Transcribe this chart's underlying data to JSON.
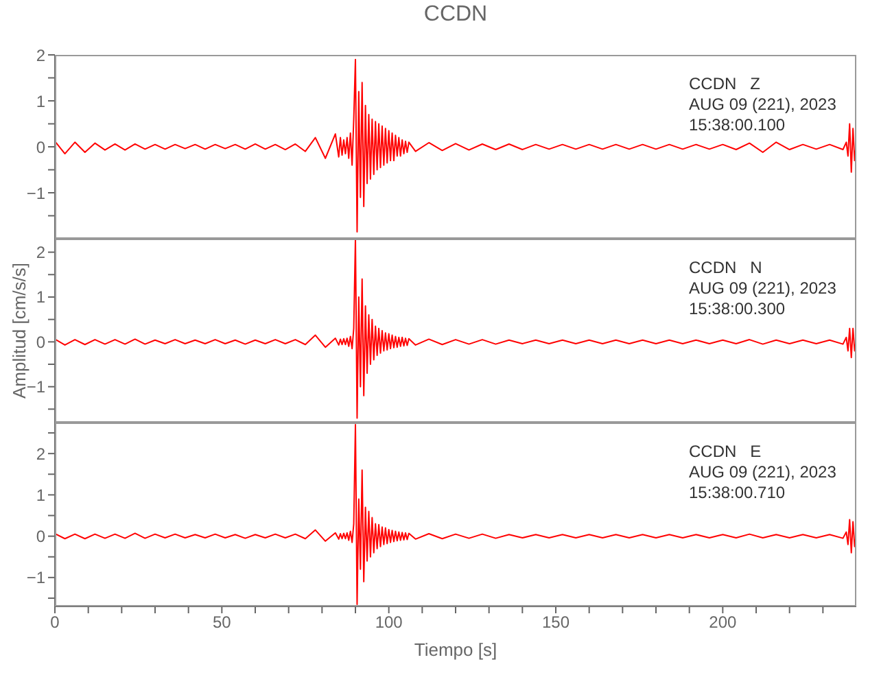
{
  "chart_data": [
    {
      "type": "line",
      "title": "CCDN",
      "annotations": [
        "CCDN   Z",
        "AUG 09 (221), 2023",
        "15:38:00.100"
      ],
      "tick_labels": "y",
      "xlim": [
        0,
        240
      ],
      "ylim": [
        -2,
        2
      ],
      "xticks": [
        0,
        {
          "value": 10,
          "label": null
        },
        {
          "value": 20,
          "label": null
        },
        {
          "value": 30,
          "label": null
        },
        {
          "value": 40,
          "label": null
        },
        50,
        {
          "value": 60,
          "label": null
        },
        {
          "value": 70,
          "label": null
        },
        {
          "value": 80,
          "label": null
        },
        {
          "value": 90,
          "label": null
        },
        100,
        {
          "value": 110,
          "label": null
        },
        {
          "value": 120,
          "label": null
        },
        {
          "value": 130,
          "label": null
        },
        {
          "value": 140,
          "label": null
        },
        150,
        {
          "value": 160,
          "label": null
        },
        {
          "value": 170,
          "label": null
        },
        {
          "value": 180,
          "label": null
        },
        {
          "value": 190,
          "label": null
        },
        200,
        {
          "value": 210,
          "label": null
        },
        {
          "value": 220,
          "label": null
        },
        {
          "value": 230,
          "label": null
        }
      ],
      "yticks": [
        {
          "value": -1.5,
          "label": null
        },
        -1,
        {
          "value": -0.5,
          "label": null
        },
        0,
        {
          "value": 0.5,
          "label": null
        },
        1,
        {
          "value": 1.5,
          "label": null
        },
        2
      ],
      "x": [
        0,
        3,
        6,
        9,
        12,
        15,
        18,
        21,
        24,
        27,
        30,
        33,
        36,
        39,
        42,
        45,
        48,
        51,
        54,
        57,
        60,
        63,
        66,
        69,
        72,
        75,
        78,
        81,
        84,
        85,
        85.5,
        86,
        86.5,
        87,
        87.5,
        88,
        88.5,
        89,
        89.5,
        90,
        90.5,
        91,
        91.5,
        92,
        92.5,
        93,
        93.5,
        94,
        94.5,
        95,
        95.5,
        96,
        96.5,
        97,
        97.5,
        98,
        98.5,
        99,
        99.5,
        100,
        100.5,
        101,
        101.5,
        102,
        102.5,
        103,
        103.5,
        104,
        104.5,
        105,
        105.5,
        106,
        108,
        112,
        116,
        120,
        124,
        128,
        132,
        136,
        140,
        144,
        148,
        152,
        156,
        160,
        164,
        168,
        172,
        176,
        180,
        184,
        188,
        192,
        196,
        200,
        204,
        208,
        212,
        216,
        220,
        224,
        228,
        232,
        236,
        237,
        237.5,
        238,
        238.5,
        239,
        239.5,
        240
      ],
      "series": [
        {
          "color": "#ff0000",
          "values": [
            0.12,
            -0.15,
            0.1,
            -0.12,
            0.08,
            -0.07,
            0.06,
            -0.07,
            0.06,
            -0.05,
            0.05,
            -0.05,
            0.05,
            -0.04,
            0.05,
            -0.05,
            0.05,
            -0.04,
            0.05,
            -0.05,
            0.06,
            -0.05,
            0.05,
            -0.06,
            0.06,
            -0.1,
            0.2,
            -0.25,
            0.28,
            -0.22,
            0.2,
            -0.18,
            0.15,
            -0.15,
            0.2,
            -0.25,
            0.3,
            -0.4,
            0.6,
            1.9,
            -1.85,
            1.2,
            -1.1,
            1.4,
            -1.3,
            0.9,
            -0.8,
            0.7,
            -0.7,
            0.6,
            -0.6,
            0.55,
            -0.5,
            0.5,
            -0.45,
            0.45,
            -0.4,
            0.4,
            -0.35,
            0.35,
            -0.3,
            0.3,
            -0.3,
            0.25,
            -0.2,
            0.2,
            -0.2,
            0.15,
            -0.15,
            0.12,
            -0.12,
            0.1,
            -0.1,
            0.09,
            -0.08,
            0.07,
            -0.07,
            0.06,
            -0.06,
            0.06,
            -0.06,
            0.05,
            -0.05,
            0.05,
            -0.05,
            0.05,
            -0.05,
            0.05,
            -0.05,
            0.05,
            -0.05,
            0.05,
            -0.05,
            0.05,
            -0.05,
            0.05,
            -0.06,
            0.08,
            -0.12,
            0.1,
            -0.06,
            0.05,
            -0.05,
            0.05,
            -0.06,
            0.1,
            -0.2,
            0.5,
            -0.55,
            0.4,
            -0.3,
            0.1
          ]
        }
      ]
    },
    {
      "type": "line",
      "ylabel": "Amplitud [cm/s/s]",
      "annotations": [
        "CCDN   N",
        "AUG 09 (221), 2023",
        "15:38:00.300"
      ],
      "tick_labels": "y",
      "xlim": [
        0,
        240
      ],
      "ylim": [
        -1.8,
        2.3
      ],
      "xticks": [
        0,
        {
          "value": 10,
          "label": null
        },
        {
          "value": 20,
          "label": null
        },
        {
          "value": 30,
          "label": null
        },
        {
          "value": 40,
          "label": null
        },
        50,
        {
          "value": 60,
          "label": null
        },
        {
          "value": 70,
          "label": null
        },
        {
          "value": 80,
          "label": null
        },
        {
          "value": 90,
          "label": null
        },
        100,
        {
          "value": 110,
          "label": null
        },
        {
          "value": 120,
          "label": null
        },
        {
          "value": 130,
          "label": null
        },
        {
          "value": 140,
          "label": null
        },
        150,
        {
          "value": 160,
          "label": null
        },
        {
          "value": 170,
          "label": null
        },
        {
          "value": 180,
          "label": null
        },
        {
          "value": 190,
          "label": null
        },
        200,
        {
          "value": 210,
          "label": null
        },
        {
          "value": 220,
          "label": null
        },
        {
          "value": 230,
          "label": null
        }
      ],
      "yticks": [
        {
          "value": -1.5,
          "label": null
        },
        -1,
        {
          "value": -0.5,
          "label": null
        },
        0,
        {
          "value": 0.5,
          "label": null
        },
        1,
        {
          "value": 1.5,
          "label": null
        },
        2
      ],
      "x": [
        0,
        3,
        6,
        9,
        12,
        15,
        18,
        21,
        24,
        27,
        30,
        33,
        36,
        39,
        42,
        45,
        48,
        51,
        54,
        57,
        60,
        63,
        66,
        69,
        72,
        75,
        78,
        81,
        84,
        85,
        85.5,
        86,
        86.5,
        87,
        87.5,
        88,
        88.5,
        89,
        89.5,
        90,
        90.5,
        91,
        91.5,
        92,
        92.5,
        93,
        93.5,
        94,
        94.5,
        95,
        95.5,
        96,
        96.5,
        97,
        97.5,
        98,
        98.5,
        99,
        99.5,
        100,
        100.5,
        101,
        101.5,
        102,
        102.5,
        103,
        103.5,
        104,
        104.5,
        105,
        105.5,
        106,
        108,
        112,
        116,
        120,
        124,
        128,
        132,
        136,
        140,
        144,
        148,
        152,
        156,
        160,
        164,
        168,
        172,
        176,
        180,
        184,
        188,
        192,
        196,
        200,
        204,
        208,
        212,
        216,
        220,
        224,
        228,
        232,
        236,
        237,
        237.5,
        238,
        238.5,
        239,
        239.5,
        240
      ],
      "series": [
        {
          "color": "#ff0000",
          "values": [
            0.06,
            -0.07,
            0.05,
            -0.06,
            0.05,
            -0.05,
            0.05,
            -0.05,
            0.06,
            -0.05,
            0.04,
            -0.04,
            0.05,
            -0.04,
            0.04,
            -0.04,
            0.05,
            -0.04,
            0.04,
            -0.05,
            0.04,
            -0.04,
            0.05,
            -0.04,
            0.05,
            -0.06,
            0.15,
            -0.12,
            0.08,
            -0.07,
            0.06,
            -0.06,
            0.07,
            -0.06,
            0.08,
            -0.1,
            0.12,
            -0.15,
            0.3,
            2.3,
            -1.7,
            1.0,
            -1.0,
            1.4,
            -1.2,
            0.8,
            -0.7,
            0.6,
            -0.5,
            0.5,
            -0.4,
            0.35,
            -0.3,
            0.3,
            -0.25,
            0.25,
            -0.2,
            0.2,
            -0.18,
            0.18,
            -0.15,
            0.15,
            -0.13,
            0.12,
            -0.12,
            0.1,
            -0.1,
            0.1,
            -0.09,
            0.08,
            -0.08,
            0.07,
            -0.07,
            0.06,
            -0.06,
            0.05,
            -0.05,
            0.05,
            -0.05,
            0.04,
            -0.04,
            0.04,
            -0.04,
            0.04,
            -0.04,
            0.04,
            -0.04,
            0.04,
            -0.04,
            0.04,
            -0.04,
            0.04,
            -0.04,
            0.04,
            -0.04,
            0.04,
            -0.04,
            0.05,
            -0.05,
            0.04,
            -0.04,
            0.04,
            -0.04,
            0.04,
            -0.05,
            0.1,
            -0.2,
            0.3,
            -0.35,
            0.3,
            -0.2,
            0.05
          ]
        }
      ]
    },
    {
      "type": "line",
      "xlabel": "Tiempo [s]",
      "annotations": [
        "CCDN   E",
        "AUG 09 (221), 2023",
        "15:38:00.710"
      ],
      "xlim": [
        0,
        240
      ],
      "ylim": [
        -1.7,
        2.75
      ],
      "xticks": [
        0,
        {
          "value": 10,
          "label": null
        },
        {
          "value": 20,
          "label": null
        },
        {
          "value": 30,
          "label": null
        },
        {
          "value": 40,
          "label": null
        },
        50,
        {
          "value": 60,
          "label": null
        },
        {
          "value": 70,
          "label": null
        },
        {
          "value": 80,
          "label": null
        },
        {
          "value": 90,
          "label": null
        },
        100,
        {
          "value": 110,
          "label": null
        },
        {
          "value": 120,
          "label": null
        },
        {
          "value": 130,
          "label": null
        },
        {
          "value": 140,
          "label": null
        },
        150,
        {
          "value": 160,
          "label": null
        },
        {
          "value": 170,
          "label": null
        },
        {
          "value": 180,
          "label": null
        },
        {
          "value": 190,
          "label": null
        },
        200,
        {
          "value": 210,
          "label": null
        },
        {
          "value": 220,
          "label": null
        },
        {
          "value": 230,
          "label": null
        }
      ],
      "yticks": [
        {
          "value": -1.5,
          "label": null
        },
        -1,
        {
          "value": -0.5,
          "label": null
        },
        0,
        {
          "value": 0.5,
          "label": null
        },
        1,
        {
          "value": 1.5,
          "label": null
        },
        2,
        {
          "value": 2.5,
          "label": null
        }
      ],
      "x": [
        0,
        3,
        6,
        9,
        12,
        15,
        18,
        21,
        24,
        27,
        30,
        33,
        36,
        39,
        42,
        45,
        48,
        51,
        54,
        57,
        60,
        63,
        66,
        69,
        72,
        75,
        78,
        81,
        84,
        85,
        85.5,
        86,
        86.5,
        87,
        87.5,
        88,
        88.5,
        89,
        89.5,
        90,
        90.5,
        91,
        91.5,
        92,
        92.5,
        93,
        93.5,
        94,
        94.5,
        95,
        95.5,
        96,
        96.5,
        97,
        97.5,
        98,
        98.5,
        99,
        99.5,
        100,
        100.5,
        101,
        101.5,
        102,
        102.5,
        103,
        103.5,
        104,
        104.5,
        105,
        105.5,
        106,
        108,
        112,
        116,
        120,
        124,
        128,
        132,
        136,
        140,
        144,
        148,
        152,
        156,
        160,
        164,
        168,
        172,
        176,
        180,
        184,
        188,
        192,
        196,
        200,
        204,
        208,
        212,
        216,
        220,
        224,
        228,
        232,
        236,
        237,
        237.5,
        238,
        238.5,
        239,
        239.5,
        240
      ],
      "series": [
        {
          "color": "#ff0000",
          "values": [
            0.06,
            -0.06,
            0.05,
            -0.06,
            0.05,
            -0.05,
            0.05,
            -0.05,
            0.07,
            -0.05,
            0.05,
            -0.04,
            0.05,
            -0.04,
            0.04,
            -0.04,
            0.05,
            -0.04,
            0.04,
            -0.05,
            0.04,
            -0.04,
            0.05,
            -0.04,
            0.05,
            -0.06,
            0.15,
            -0.12,
            0.08,
            -0.07,
            0.06,
            -0.06,
            0.07,
            -0.06,
            0.08,
            -0.1,
            0.12,
            -0.15,
            0.3,
            2.7,
            -1.65,
            0.9,
            -0.8,
            1.6,
            -1.1,
            0.7,
            -0.6,
            0.6,
            -0.5,
            0.45,
            -0.4,
            0.3,
            -0.3,
            0.28,
            -0.25,
            0.22,
            -0.2,
            0.2,
            -0.18,
            0.16,
            -0.15,
            0.14,
            -0.13,
            0.12,
            -0.11,
            0.1,
            -0.1,
            0.09,
            -0.09,
            0.08,
            -0.08,
            0.07,
            -0.07,
            0.06,
            -0.06,
            0.05,
            -0.05,
            0.05,
            -0.05,
            0.04,
            -0.04,
            0.04,
            -0.04,
            0.04,
            -0.04,
            0.04,
            -0.04,
            0.04,
            -0.04,
            0.04,
            -0.04,
            0.04,
            -0.04,
            0.04,
            -0.04,
            0.04,
            -0.04,
            0.05,
            -0.04,
            0.04,
            -0.04,
            0.04,
            -0.04,
            0.04,
            -0.05,
            0.1,
            -0.2,
            0.4,
            -0.4,
            0.35,
            -0.25,
            0.05
          ]
        }
      ]
    }
  ]
}
